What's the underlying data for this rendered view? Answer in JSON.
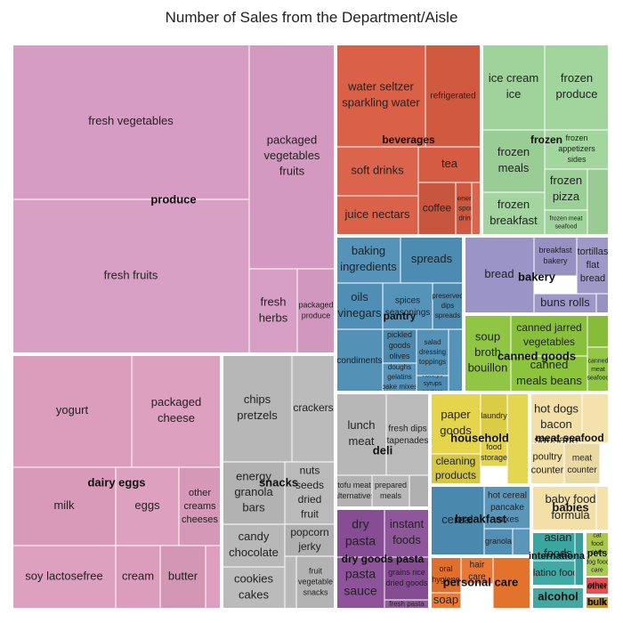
{
  "chart_data": {
    "type": "treemap",
    "title": "Number of Sales from the Department/Aisle",
    "groups": [
      {
        "name": "produce",
        "color": "#d79cc4",
        "leaves": [
          {
            "name": "fresh vegetables",
            "lines": [
              "fresh vegetables"
            ]
          },
          {
            "name": "fresh fruits",
            "lines": [
              "fresh fruits"
            ]
          },
          {
            "name": "packaged vegetables fruits",
            "lines": [
              "packaged",
              "vegetables",
              "fruits"
            ]
          },
          {
            "name": "fresh herbs",
            "lines": [
              "fresh",
              "herbs"
            ]
          },
          {
            "name": "packaged produce",
            "lines": [
              "packaged",
              "produce"
            ]
          }
        ]
      },
      {
        "name": "dairy eggs",
        "color": "#dc9dbc",
        "leaves": [
          {
            "name": "yogurt",
            "lines": [
              "yogurt"
            ]
          },
          {
            "name": "packaged cheese",
            "lines": [
              "packaged",
              "cheese"
            ]
          },
          {
            "name": "milk",
            "lines": [
              "milk"
            ]
          },
          {
            "name": "eggs",
            "lines": [
              "eggs"
            ]
          },
          {
            "name": "other creams cheeses",
            "lines": [
              "other",
              "creams",
              "cheeses"
            ]
          },
          {
            "name": "soy lactosefree",
            "lines": [
              "soy lactosefree"
            ]
          },
          {
            "name": "cream",
            "lines": [
              "cream"
            ]
          },
          {
            "name": "butter",
            "lines": [
              "butter"
            ]
          },
          {
            "name": "",
            "lines": []
          }
        ]
      },
      {
        "name": "snacks",
        "color": "#b7b7b7",
        "leaves": [
          {
            "name": "chips pretzels",
            "lines": [
              "chips",
              "pretzels"
            ]
          },
          {
            "name": "crackers",
            "lines": [
              "crackers"
            ]
          },
          {
            "name": "energy granola bars",
            "lines": [
              "energy",
              "granola",
              "bars"
            ]
          },
          {
            "name": "nuts seeds dried fruit",
            "lines": [
              "nuts",
              "seeds",
              "dried",
              "fruit"
            ]
          },
          {
            "name": "candy chocolate",
            "lines": [
              "candy",
              "chocolate"
            ]
          },
          {
            "name": "popcorn jerky",
            "lines": [
              "popcorn",
              "jerky"
            ]
          },
          {
            "name": "cookies cakes",
            "lines": [
              "cookies",
              "cakes"
            ]
          },
          {
            "name": "fruit vegetable snacks",
            "lines": [
              "fruit",
              "vegetable",
              "snacks"
            ]
          },
          {
            "name": "",
            "lines": []
          }
        ]
      },
      {
        "name": "beverages",
        "color": "#d95d43",
        "leaves": [
          {
            "name": "water seltzer sparkling water",
            "lines": [
              "water seltzer",
              "sparkling water"
            ]
          },
          {
            "name": "refrigerated",
            "lines": [
              "refrigerated"
            ]
          },
          {
            "name": "soft drinks",
            "lines": [
              "soft drinks"
            ]
          },
          {
            "name": "tea",
            "lines": [
              "tea"
            ]
          },
          {
            "name": "juice nectars",
            "lines": [
              "juice nectars"
            ]
          },
          {
            "name": "coffee",
            "lines": [
              "coffee"
            ]
          },
          {
            "name": "energy sports drinks",
            "lines": [
              "energy",
              "sports",
              "drinks"
            ]
          },
          {
            "name": "",
            "lines": []
          }
        ]
      },
      {
        "name": "frozen",
        "color": "#9fd39b",
        "leaves": [
          {
            "name": "ice cream ice",
            "lines": [
              "ice cream",
              "ice"
            ]
          },
          {
            "name": "frozen produce",
            "lines": [
              "frozen",
              "produce"
            ]
          },
          {
            "name": "frozen meals",
            "lines": [
              "frozen",
              "meals"
            ]
          },
          {
            "name": "frozen appetizers sides",
            "lines": [
              "frozen",
              "appetizers",
              "sides"
            ]
          },
          {
            "name": "frozen pizza",
            "lines": [
              "frozen",
              "pizza"
            ]
          },
          {
            "name": "frozen breakfast",
            "lines": [
              "frozen",
              "breakfast"
            ]
          },
          {
            "name": "frozen meat seafood",
            "lines": [
              "frozen meat",
              "seafood"
            ]
          },
          {
            "name": "",
            "lines": []
          }
        ]
      },
      {
        "name": "pantry",
        "color": "#4f8fb6",
        "leaves": [
          {
            "name": "baking ingredients",
            "lines": [
              "baking",
              "ingredients"
            ]
          },
          {
            "name": "spreads",
            "lines": [
              "spreads"
            ]
          },
          {
            "name": "oils vinegars",
            "lines": [
              "oils",
              "vinegars"
            ]
          },
          {
            "name": "spices seasonings",
            "lines": [
              "spices",
              "seasonings"
            ]
          },
          {
            "name": "preserved dips spreads",
            "lines": [
              "preserved",
              "dips",
              "spreads"
            ]
          },
          {
            "name": "condiments",
            "lines": [
              "condiments"
            ]
          },
          {
            "name": "pickled goods olives",
            "lines": [
              "pickled",
              "goods",
              "olives"
            ]
          },
          {
            "name": "salad dressing toppings",
            "lines": [
              "salad",
              "dressing",
              "toppings"
            ]
          },
          {
            "name": "doughs gelatins bake mixes",
            "lines": [
              "doughs",
              "gelatins",
              "bake mixes"
            ]
          },
          {
            "name": "honeys syrups nectars",
            "lines": [
              "honeys",
              "syrups",
              "nectars"
            ]
          },
          {
            "name": "",
            "lines": []
          }
        ]
      },
      {
        "name": "bakery",
        "color": "#9b95c7",
        "leaves": [
          {
            "name": "bread",
            "lines": [
              "bread"
            ]
          },
          {
            "name": "breakfast bakery",
            "lines": [
              "breakfast",
              "bakery"
            ]
          },
          {
            "name": "tortillas flat bread",
            "lines": [
              "tortillas",
              "flat",
              "bread"
            ]
          },
          {
            "name": "buns rolls",
            "lines": [
              "buns rolls"
            ]
          },
          {
            "name": "",
            "lines": []
          }
        ]
      },
      {
        "name": "canned goods",
        "color": "#8cc43c",
        "leaves": [
          {
            "name": "soup broth bouillon",
            "lines": [
              "soup",
              "broth",
              "bouillon"
            ]
          },
          {
            "name": "canned jarred vegetables",
            "lines": [
              "canned jarred",
              "vegetables"
            ]
          },
          {
            "name": "canned meals beans",
            "lines": [
              "canned",
              "meals beans"
            ]
          },
          {
            "name": "canned meat seafood",
            "lines": [
              "canned",
              "meat",
              "seafood"
            ]
          },
          {
            "name": "",
            "lines": []
          }
        ]
      },
      {
        "name": "deli",
        "color": "#b7b7b7",
        "leaves": [
          {
            "name": "lunch meat",
            "lines": [
              "lunch",
              "meat"
            ]
          },
          {
            "name": "fresh dips tapenades",
            "lines": [
              "fresh dips",
              "tapenades"
            ]
          },
          {
            "name": "tofu meat alternatives",
            "lines": [
              "tofu meat",
              "alternatives"
            ]
          },
          {
            "name": "prepared meals",
            "lines": [
              "prepared",
              "meals"
            ]
          },
          {
            "name": "",
            "lines": []
          }
        ]
      },
      {
        "name": "household",
        "color": "#e3d448",
        "leaves": [
          {
            "name": "paper goods",
            "lines": [
              "paper",
              "goods"
            ]
          },
          {
            "name": "laundry",
            "lines": [
              "laundry"
            ]
          },
          {
            "name": "food storage",
            "lines": [
              "food",
              "storage"
            ]
          },
          {
            "name": "cleaning products",
            "lines": [
              "cleaning",
              "products"
            ]
          },
          {
            "name": "",
            "lines": []
          }
        ]
      },
      {
        "name": "meat seafood",
        "color": "#f2e0a8",
        "leaves": [
          {
            "name": "hot dogs bacon sausage",
            "lines": [
              "hot dogs",
              "bacon",
              "sausage"
            ]
          },
          {
            "name": "poultry counter",
            "lines": [
              "poultry",
              "counter"
            ]
          },
          {
            "name": "meat counter",
            "lines": [
              "meat",
              "counter"
            ]
          },
          {
            "name": "",
            "lines": []
          }
        ]
      },
      {
        "name": "breakfast",
        "color": "#4f8fb6",
        "leaves": [
          {
            "name": "cereal",
            "lines": [
              "cereal"
            ]
          },
          {
            "name": "hot cereal pancake mixes",
            "lines": [
              "hot cereal",
              "pancake",
              "mixes"
            ]
          },
          {
            "name": "granola",
            "lines": [
              "granola"
            ]
          },
          {
            "name": "",
            "lines": []
          }
        ]
      },
      {
        "name": "babies",
        "color": "#f2e0a8",
        "leaves": [
          {
            "name": "baby food formula",
            "lines": [
              "baby food",
              "formula"
            ]
          },
          {
            "name": "",
            "lines": []
          }
        ]
      },
      {
        "name": "dry goods pasta",
        "color": "#8a4f97",
        "leaves": [
          {
            "name": "dry pasta",
            "lines": [
              "dry",
              "pasta"
            ]
          },
          {
            "name": "instant foods",
            "lines": [
              "instant",
              "foods"
            ]
          },
          {
            "name": "pasta sauce",
            "lines": [
              "pasta",
              "sauce"
            ]
          },
          {
            "name": "grains rice dried goods",
            "lines": [
              "grains rice",
              "dried goods"
            ]
          },
          {
            "name": "fresh pasta",
            "lines": [
              "fresh pasta"
            ]
          }
        ]
      },
      {
        "name": "personal care",
        "color": "#e8742e",
        "leaves": [
          {
            "name": "oral hygiene",
            "lines": [
              "oral",
              "hygiene"
            ]
          },
          {
            "name": "hair care",
            "lines": [
              "hair",
              "care"
            ]
          },
          {
            "name": "soap",
            "lines": [
              "soap"
            ]
          },
          {
            "name": "",
            "lines": []
          }
        ]
      },
      {
        "name": "international",
        "color": "#3aa6a0",
        "leaves": [
          {
            "name": "asian foods",
            "lines": [
              "asian",
              "foods"
            ]
          },
          {
            "name": "latino foods",
            "lines": [
              "latino foods"
            ]
          },
          {
            "name": "",
            "lines": []
          }
        ]
      },
      {
        "name": "pets",
        "color": "#a8c84a",
        "leaves": [
          {
            "name": "cat food care",
            "lines": [
              "cat",
              "food",
              "care"
            ]
          },
          {
            "name": "dog food care",
            "lines": [
              "dog food",
              "care"
            ]
          }
        ]
      },
      {
        "name": "other",
        "color": "#e55050",
        "leaves": [
          {
            "name": "other",
            "lines": [
              "other"
            ]
          }
        ]
      },
      {
        "name": "alcohol",
        "color": "#44a8a0",
        "leaves": [
          {
            "name": "",
            "lines": []
          }
        ]
      },
      {
        "name": "bulk",
        "color": "#c9962e",
        "leaves": [
          {
            "name": "bulk",
            "lines": [
              "bulk"
            ]
          }
        ]
      }
    ]
  }
}
